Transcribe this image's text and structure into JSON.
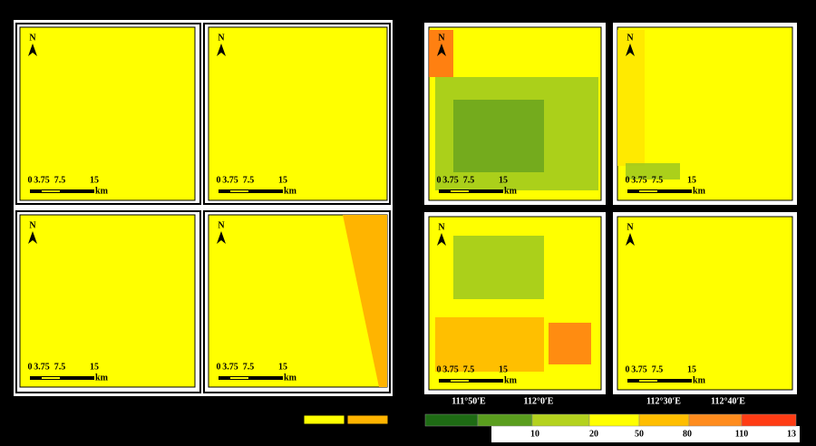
{
  "north": "N",
  "scale_bar": {
    "ticks": [
      "0",
      "3.75",
      "7.5",
      "15"
    ],
    "unit": "km"
  },
  "longitudes": [
    "111°50′E",
    "112°0′E",
    "112°30′E",
    "112°40′E"
  ],
  "legend": {
    "colors": [
      "#1e6b14",
      "#5a9e1e",
      "#b4d21e",
      "#ffff00",
      "#ffbe00",
      "#ff8c1e",
      "#ff3c14"
    ],
    "labels": [
      "10",
      "20",
      "50",
      "80",
      "110",
      "13"
    ]
  }
}
